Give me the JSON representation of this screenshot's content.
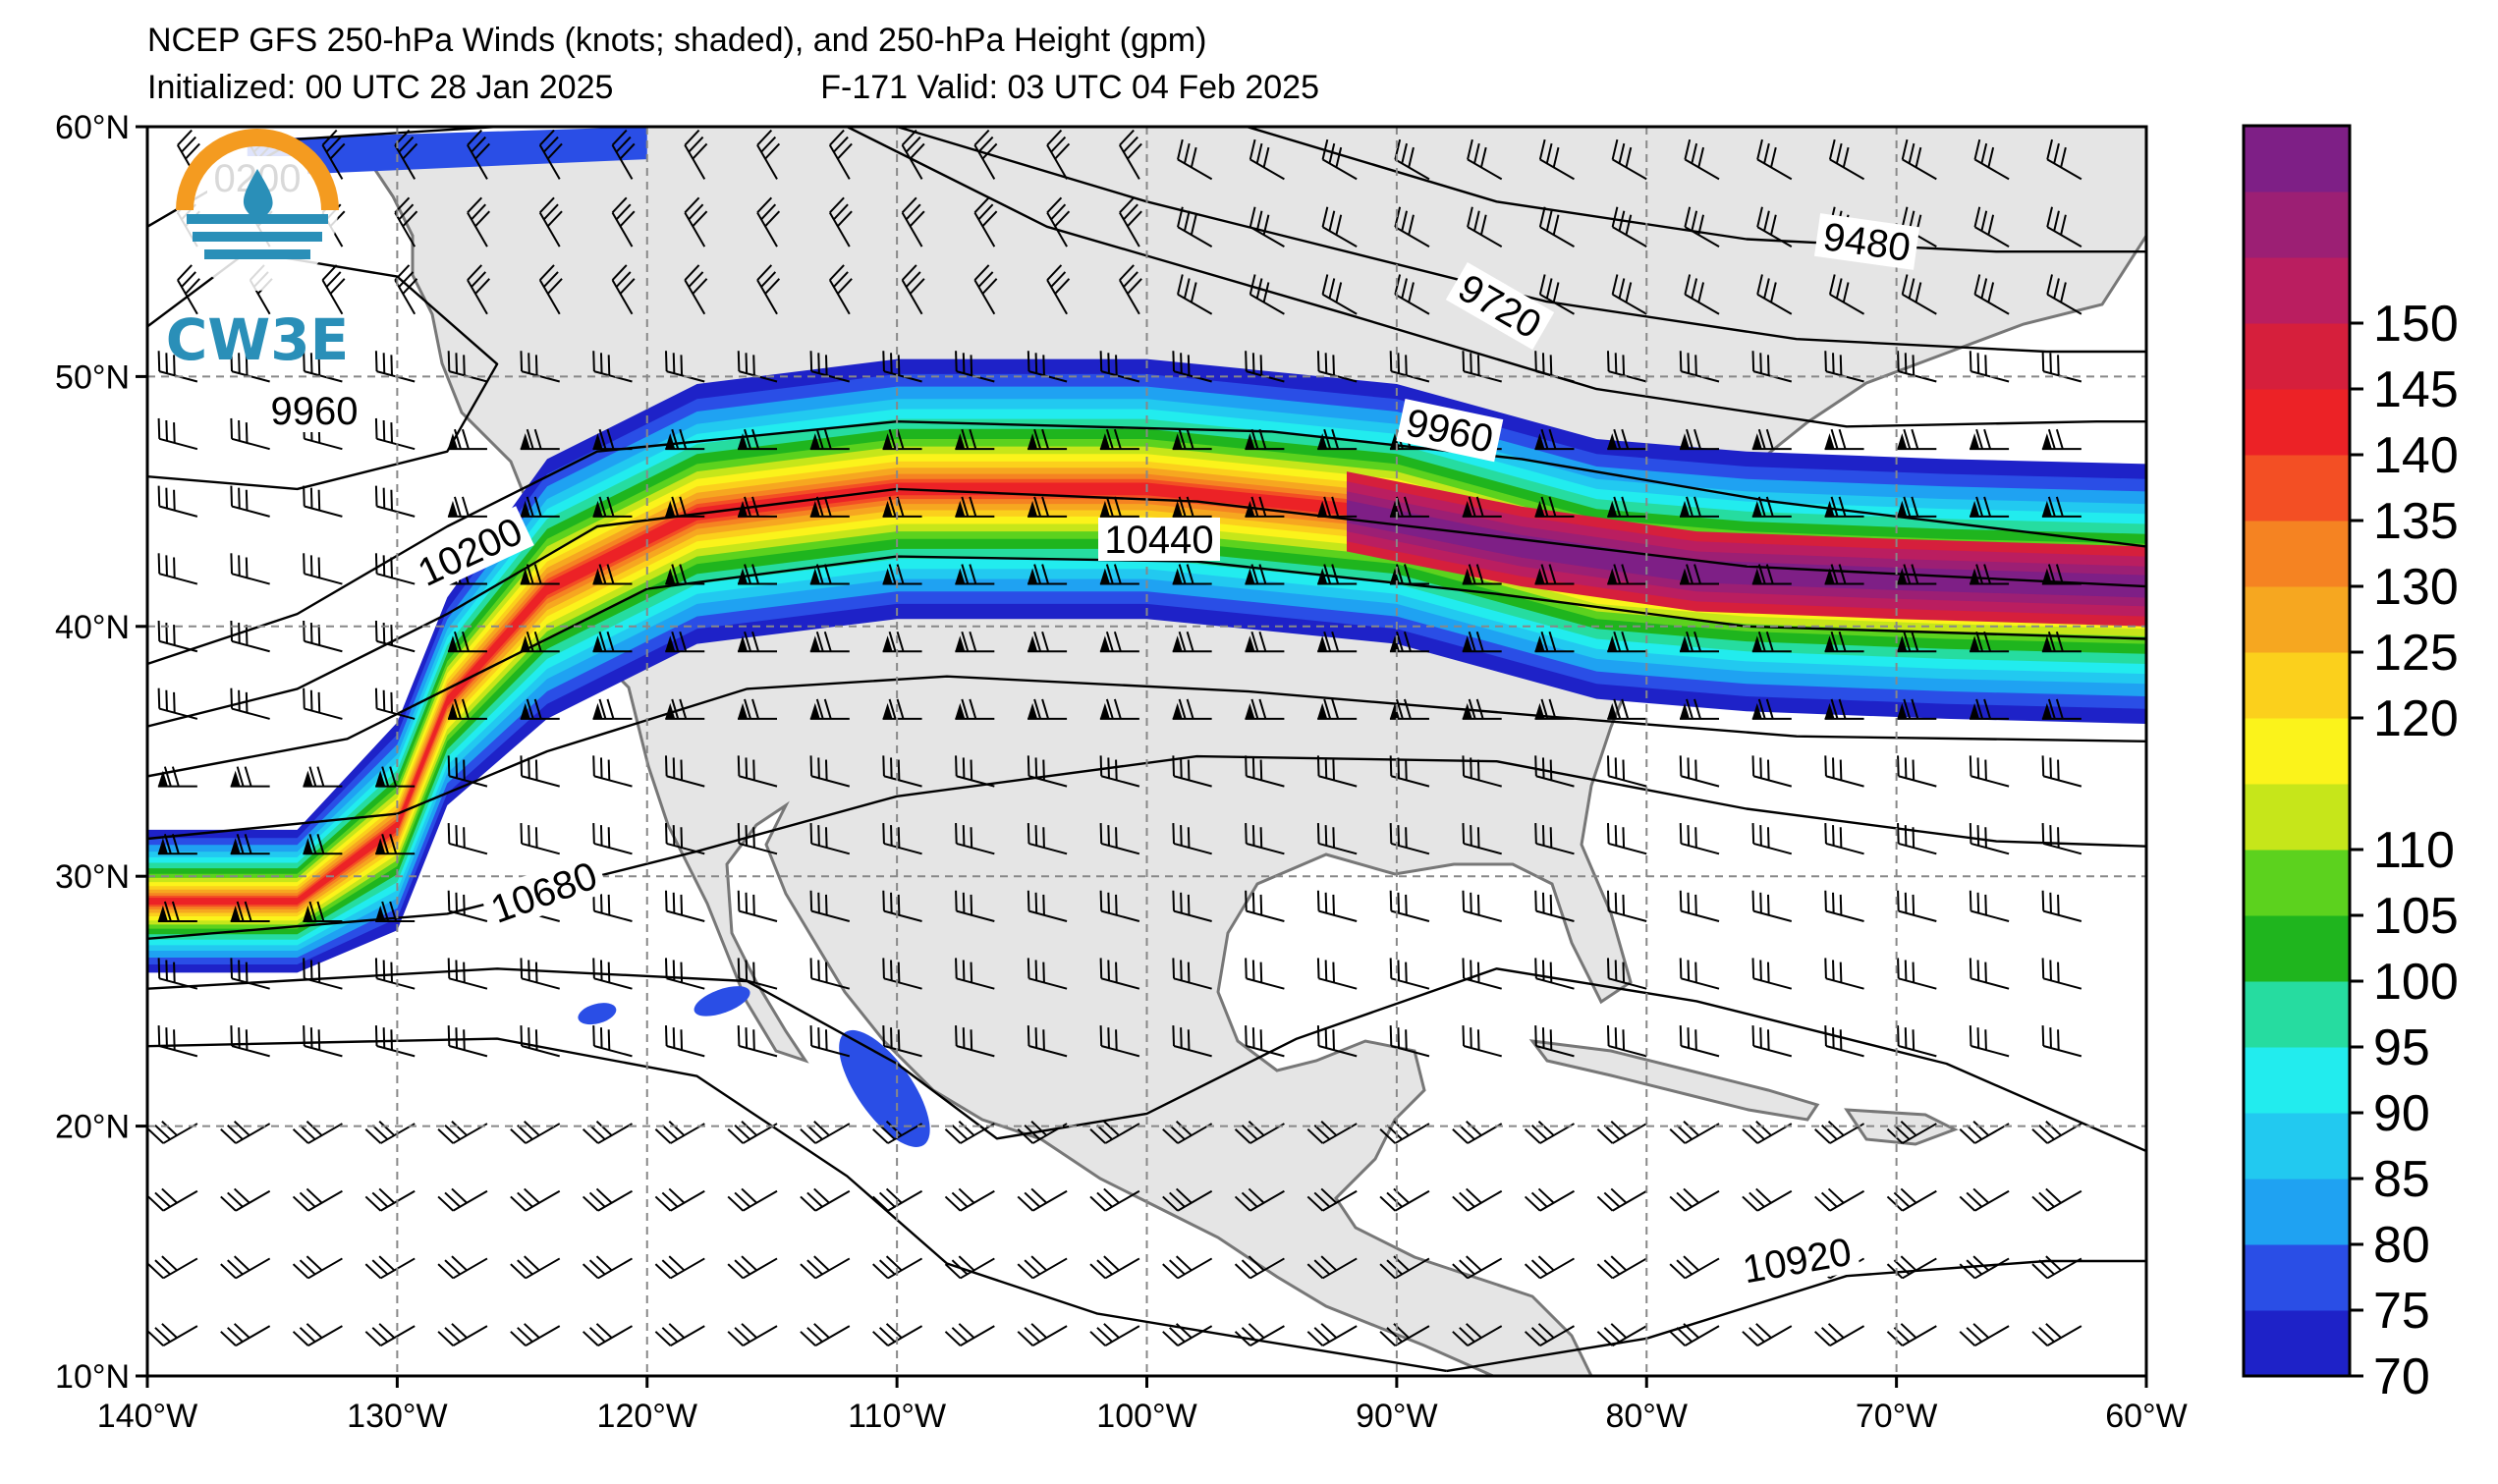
{
  "title": {
    "line1": "NCEP GFS 250-hPa Winds (knots; shaded), and 250-hPa Height (gpm)",
    "line2": "Initialized: 00 UTC 28 Jan 2025",
    "valid": "F-171  Valid: 03 UTC 04 Feb 2025"
  },
  "logo": {
    "text": "CW3E"
  },
  "map": {
    "extent": {
      "lon_min": -140,
      "lon_max": -60,
      "lat_min": 10,
      "lat_max": 60
    },
    "lon_ticks": [
      "140°W",
      "130°W",
      "120°W",
      "110°W",
      "100°W",
      "90°W",
      "80°W",
      "70°W",
      "60°W"
    ],
    "lat_ticks": [
      "10°N",
      "20°N",
      "30°N",
      "40°N",
      "50°N",
      "60°N"
    ],
    "gridlines": "dashed",
    "land_color": "#e5e5e5",
    "ocean_color": "#ffffff"
  },
  "height_contours": {
    "units": "gpm",
    "labels": [
      "9480",
      "9720",
      "9960",
      "9960",
      "10200",
      "10440",
      "10680",
      "10920",
      "0200"
    ]
  },
  "colorbar": {
    "units": "knots",
    "ticks": [
      "70",
      "75",
      "80",
      "85",
      "90",
      "95",
      "100",
      "105",
      "110",
      "120",
      "125",
      "130",
      "135",
      "140",
      "145",
      "150"
    ],
    "colors": [
      "#1e22c8",
      "#2a4ee6",
      "#1fa2f2",
      "#22c9f0",
      "#22ecee",
      "#26dca0",
      "#1fb51e",
      "#5cd21e",
      "#c6e61a",
      "#fbf31b",
      "#fbd01c",
      "#f6a720",
      "#f58322",
      "#f34f24",
      "#ec2226",
      "#d61f3c",
      "#ba1e60",
      "#9c1f74",
      "#7e1f86"
    ]
  }
}
